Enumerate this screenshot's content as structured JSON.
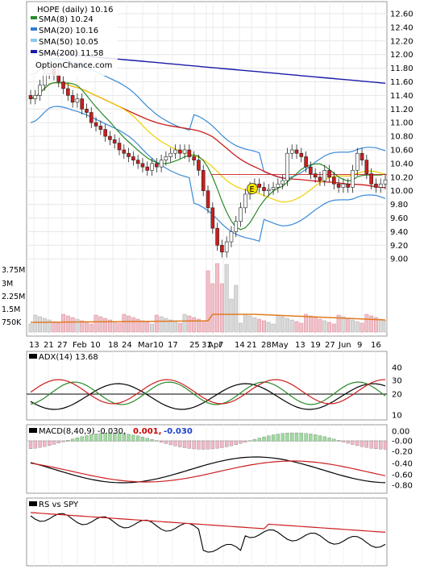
{
  "header": {
    "title": "HOPE (daily) 10.16",
    "watermark": "OptionChance.com"
  },
  "legend": [
    {
      "label": "SMA(8) 10.24",
      "color": "#2a8a2a"
    },
    {
      "label": "SMA(20) 10.16",
      "color": "#2f7fd0"
    },
    {
      "label": "SMA(50) 10.05",
      "color": "#88c8f0"
    },
    {
      "label": "SMA(200) 11.58",
      "color": "#1a1aa8"
    }
  ],
  "price_axis": [
    "12.60",
    "12.40",
    "12.20",
    "12.00",
    "11.80",
    "11.60",
    "11.40",
    "11.20",
    "11.00",
    "10.80",
    "10.60",
    "10.40",
    "10.20",
    "10.00",
    "9.80",
    "9.60",
    "9.40",
    "9.20",
    "9.00"
  ],
  "volume_axis": [
    "3.75M",
    "3M",
    "2.25M",
    "1.5M",
    "750K"
  ],
  "date_labels": [
    "13",
    "21",
    "27",
    "Feb",
    "10",
    "18",
    "24",
    "Mar",
    "10",
    "17",
    "25",
    "31",
    "Apr",
    "7",
    "14",
    "21",
    "28",
    "May",
    "13",
    "19",
    "27",
    "Jun",
    "9",
    "16"
  ],
  "event_marker": "E",
  "adx": {
    "label": "ADX(14) 13.68",
    "axis": [
      "40",
      "30",
      "20",
      "10"
    ]
  },
  "macd": {
    "label": "MACD(8,40,9) -0.030,",
    "value1": "0.001,",
    "value2": "-0.030",
    "value1_color": "#cc0000",
    "value2_color": "#1a3fcc",
    "axis": [
      "0.00",
      "-0.00",
      "-0.20",
      "-0.40",
      "-0.60",
      "-0.80"
    ]
  },
  "rs": {
    "label": "RS vs SPY"
  },
  "chart_data": {
    "type": "candlestick",
    "title": "HOPE (daily) 10.16",
    "ylim": [
      8.8,
      12.7
    ],
    "close_series": [
      11.35,
      11.4,
      11.55,
      11.72,
      11.8,
      11.7,
      11.6,
      11.5,
      11.4,
      11.3,
      11.35,
      11.2,
      11.15,
      11.0,
      10.95,
      10.9,
      10.8,
      10.75,
      10.7,
      10.6,
      10.55,
      10.5,
      10.45,
      10.4,
      10.35,
      10.3,
      10.4,
      10.35,
      10.45,
      10.5,
      10.55,
      10.6,
      10.55,
      10.6,
      10.5,
      10.45,
      10.3,
      10.0,
      9.75,
      9.45,
      9.2,
      9.1,
      9.25,
      9.4,
      9.55,
      9.75,
      9.95,
      10.05,
      10.1,
      10.05,
      10.0,
      10.02,
      10.05,
      10.1,
      10.15,
      10.55,
      10.6,
      10.55,
      10.5,
      10.35,
      10.25,
      10.2,
      10.15,
      10.3,
      10.2,
      10.1,
      10.05,
      10.1,
      10.05,
      10.3,
      10.55,
      10.45,
      10.25,
      10.1,
      10.05,
      10.1,
      10.16
    ]
  }
}
